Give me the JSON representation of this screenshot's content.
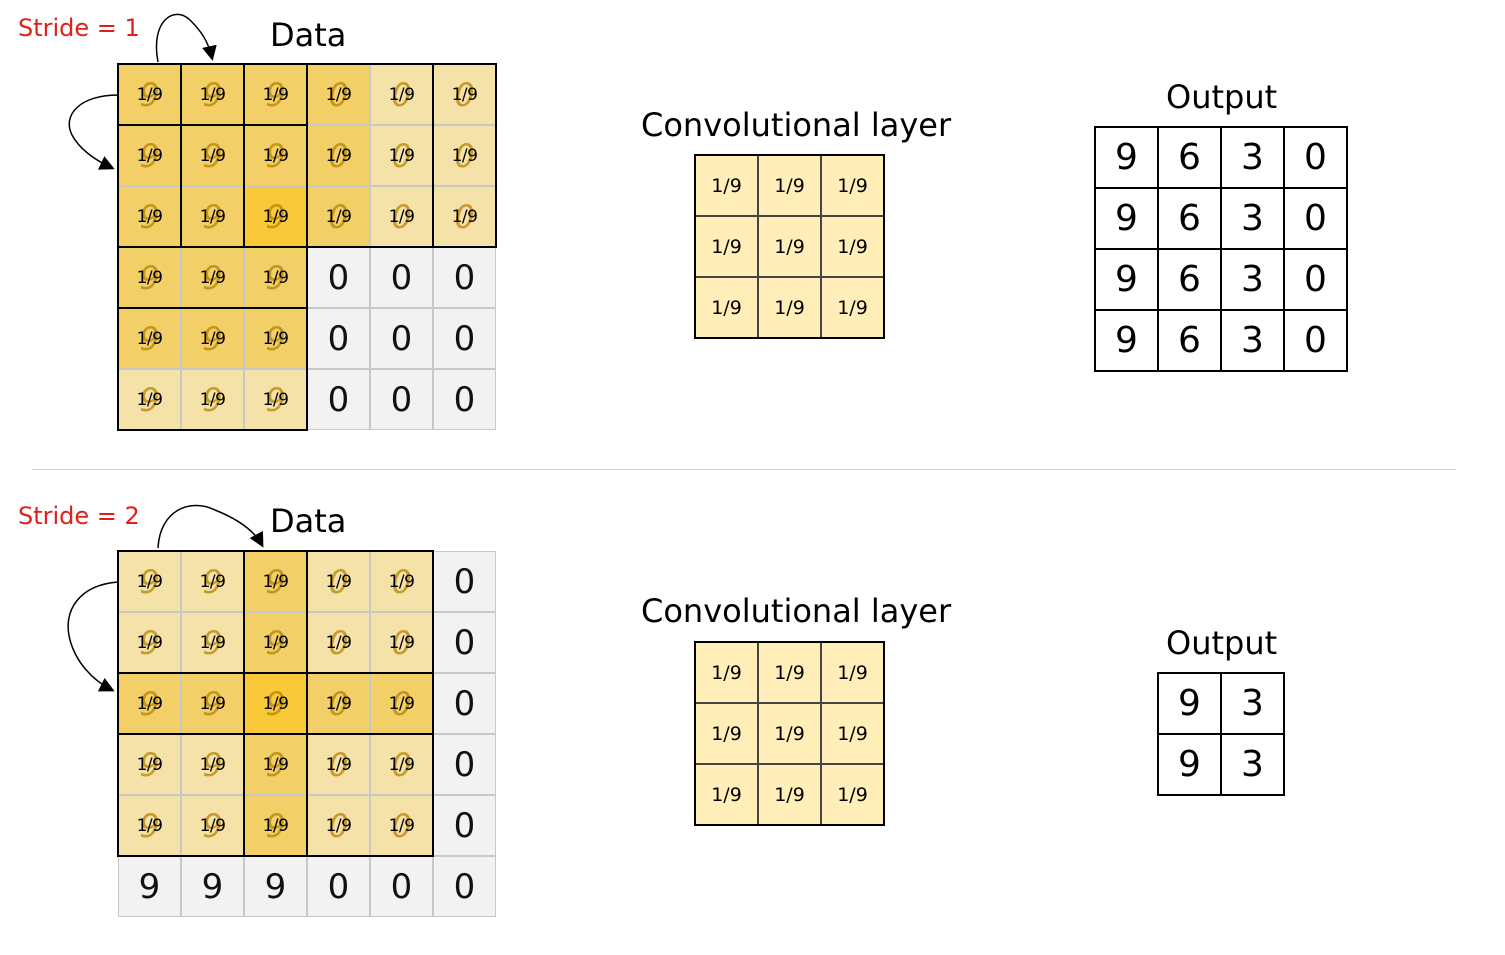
{
  "panels": [
    {
      "stride_label": "Stride = 1",
      "data_title": "Data",
      "data": [
        [
          "9",
          "9",
          "9",
          "0",
          "0",
          "0"
        ],
        [
          "9",
          "9",
          "9",
          "0",
          "0",
          "0"
        ],
        [
          "9",
          "9",
          "9",
          "0",
          "0",
          "0"
        ],
        [
          "9",
          "9",
          "9",
          "0",
          "0",
          "0"
        ],
        [
          "9",
          "9",
          "9",
          "0",
          "0",
          "0"
        ],
        [
          "9",
          "9",
          "9",
          "0",
          "0",
          "0"
        ]
      ],
      "overlay_text": "1/9",
      "kernel_title": "Convolutional layer",
      "kernel": [
        [
          "1/9",
          "1/9",
          "1/9"
        ],
        [
          "1/9",
          "1/9",
          "1/9"
        ],
        [
          "1/9",
          "1/9",
          "1/9"
        ]
      ],
      "output_title": "Output",
      "output": [
        [
          "9",
          "6",
          "3",
          "0"
        ],
        [
          "9",
          "6",
          "3",
          "0"
        ],
        [
          "9",
          "6",
          "3",
          "0"
        ],
        [
          "9",
          "6",
          "3",
          "0"
        ]
      ],
      "colors": {
        "light": "#f5e2a8",
        "mid": "#f3cf67",
        "dark": "#f9c93a",
        "gray": "#f2f2f2"
      }
    },
    {
      "stride_label": "Stride = 2",
      "data_title": "Data",
      "data": [
        [
          "9",
          "9",
          "9",
          "0",
          "0",
          "0"
        ],
        [
          "9",
          "9",
          "9",
          "0",
          "0",
          "0"
        ],
        [
          "9",
          "9",
          "9",
          "0",
          "0",
          "0"
        ],
        [
          "9",
          "9",
          "9",
          "0",
          "0",
          "0"
        ],
        [
          "9",
          "9",
          "9",
          "0",
          "0",
          "0"
        ],
        [
          "9",
          "9",
          "9",
          "0",
          "0",
          "0"
        ]
      ],
      "overlay_text": "1/9",
      "kernel_title": "Convolutional layer",
      "kernel": [
        [
          "1/9",
          "1/9",
          "1/9"
        ],
        [
          "1/9",
          "1/9",
          "1/9"
        ],
        [
          "1/9",
          "1/9",
          "1/9"
        ]
      ],
      "output_title": "Output",
      "output": [
        [
          "9",
          "3"
        ],
        [
          "9",
          "3"
        ]
      ],
      "colors": {
        "light": "#f5e2a8",
        "mid": "#f3cf67",
        "dark": "#f9c93a",
        "gray": "#f2f2f2"
      }
    }
  ]
}
